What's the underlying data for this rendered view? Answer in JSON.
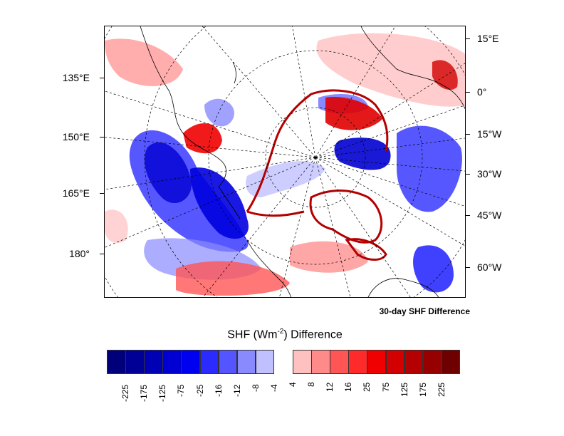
{
  "map": {
    "title": "30-day SHF Difference",
    "lon_labels_left": [
      "135°E",
      "150°E",
      "165°E",
      "180°"
    ],
    "lon_labels_right": [
      "15°E",
      "0°",
      "15°W",
      "30°W",
      "45°W",
      "60°W"
    ]
  },
  "colorbar": {
    "title_main": "SHF (Wm",
    "title_exp": "-2",
    "title_tail": ") Difference",
    "labels": [
      "-225",
      "-175",
      "-125",
      "-75",
      "-25",
      "-16",
      "-12",
      "-8",
      "-4",
      "4",
      "8",
      "12",
      "16",
      "25",
      "75",
      "125",
      "175",
      "225"
    ],
    "colors": [
      "#00007a",
      "#000096",
      "#0000b4",
      "#0000d2",
      "#0000f0",
      "#2b2bff",
      "#5555ff",
      "#8a8aff",
      "#c0c0ff",
      "#ffffff",
      "#ffc0c0",
      "#ff8a8a",
      "#ff5555",
      "#ff2b2b",
      "#f00000",
      "#d20000",
      "#b40000",
      "#960000",
      "#6e0000"
    ]
  }
}
